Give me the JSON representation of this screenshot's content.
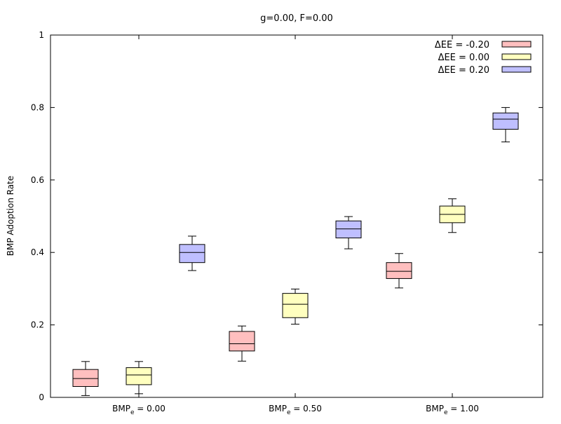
{
  "chart_data": {
    "type": "boxplot",
    "title": "g=0.00, F=0.00",
    "xlabel": "",
    "ylabel": "BMP Adoption Rate",
    "ylim": [
      0,
      1
    ],
    "yticks": [
      0,
      0.2,
      0.4,
      0.6,
      0.8,
      1
    ],
    "ytick_labels": [
      "0",
      "0.2",
      "0.4",
      "0.6",
      "0.8",
      "1"
    ],
    "grid": false,
    "legend_position": "top-right",
    "categories": [
      {
        "prefix": "BMP",
        "sub": "e",
        "suffix": " = 0.00"
      },
      {
        "prefix": "BMP",
        "sub": "e",
        "suffix": " = 0.50"
      },
      {
        "prefix": "BMP",
        "sub": "e",
        "suffix": " = 1.00"
      }
    ],
    "series": [
      {
        "name": "ΔEE = -0.20",
        "color": "#ffbfbf",
        "boxes": [
          {
            "whisker_low": 0.005,
            "q1": 0.03,
            "median": 0.052,
            "q3": 0.077,
            "whisker_high": 0.099
          },
          {
            "whisker_low": 0.1,
            "q1": 0.128,
            "median": 0.148,
            "q3": 0.182,
            "whisker_high": 0.197
          },
          {
            "whisker_low": 0.302,
            "q1": 0.328,
            "median": 0.348,
            "q3": 0.372,
            "whisker_high": 0.397
          }
        ]
      },
      {
        "name": "ΔEE = 0.00",
        "color": "#ffffbf",
        "boxes": [
          {
            "whisker_low": 0.01,
            "q1": 0.035,
            "median": 0.062,
            "q3": 0.082,
            "whisker_high": 0.099
          },
          {
            "whisker_low": 0.202,
            "q1": 0.22,
            "median": 0.257,
            "q3": 0.287,
            "whisker_high": 0.299
          },
          {
            "whisker_low": 0.455,
            "q1": 0.482,
            "median": 0.505,
            "q3": 0.528,
            "whisker_high": 0.548
          }
        ]
      },
      {
        "name": "ΔEE = 0.20",
        "color": "#bfbfff",
        "boxes": [
          {
            "whisker_low": 0.35,
            "q1": 0.372,
            "median": 0.4,
            "q3": 0.422,
            "whisker_high": 0.445
          },
          {
            "whisker_low": 0.41,
            "q1": 0.44,
            "median": 0.465,
            "q3": 0.487,
            "whisker_high": 0.499
          },
          {
            "whisker_low": 0.705,
            "q1": 0.74,
            "median": 0.768,
            "q3": 0.785,
            "whisker_high": 0.8
          }
        ]
      }
    ]
  }
}
